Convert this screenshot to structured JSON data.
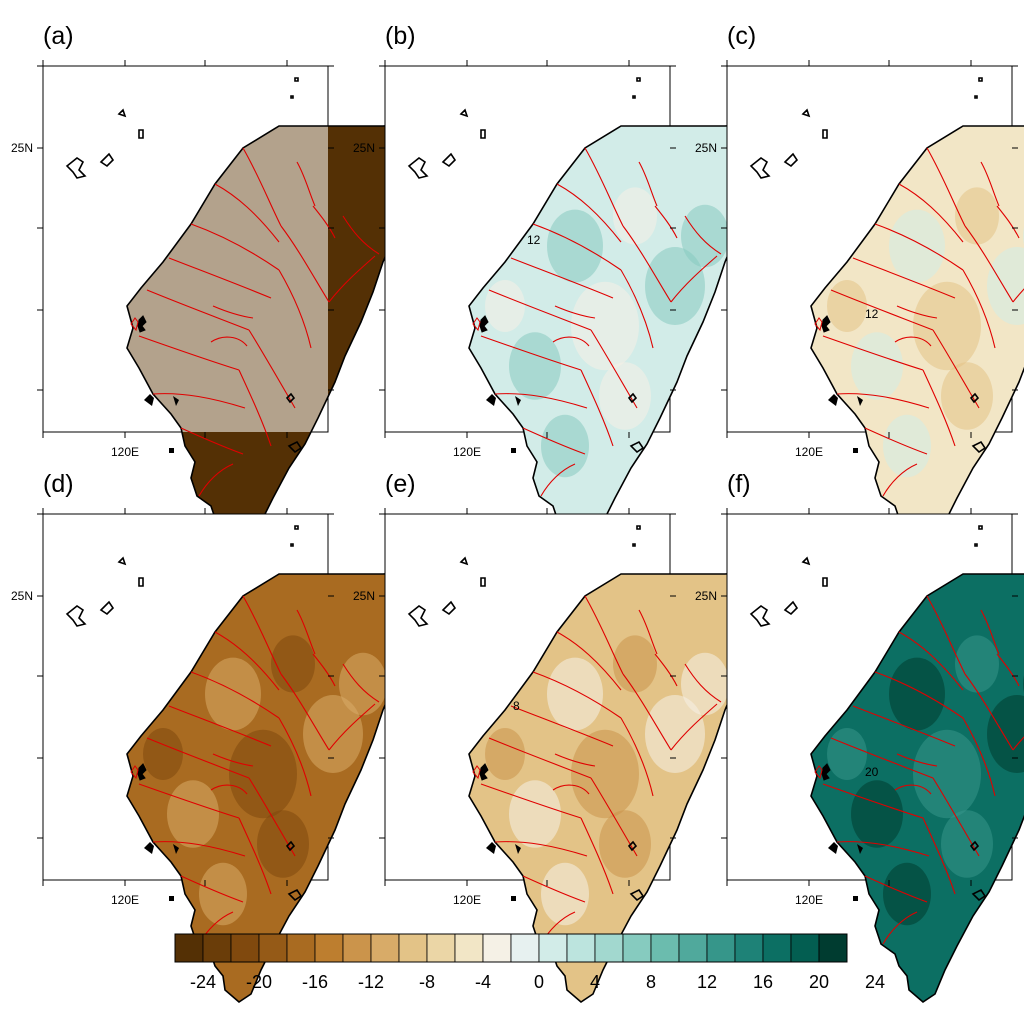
{
  "panels": [
    {
      "label": "(a)",
      "level": 0,
      "contour_label": ""
    },
    {
      "label": "(b)",
      "level": 13,
      "contour_label": "12"
    },
    {
      "label": "(c)",
      "level": 10,
      "contour_label": "12"
    },
    {
      "label": "(d)",
      "level": 4,
      "contour_label": ""
    },
    {
      "label": "(e)",
      "level": 8,
      "contour_label": "8"
    },
    {
      "label": "(f)",
      "level": 21,
      "contour_label": "20"
    }
  ],
  "axes": {
    "lat_tick_label": "25N",
    "lon_tick_label": "120E"
  },
  "colorbar": {
    "labels": [
      "-24",
      "-20",
      "-16",
      "-12",
      "-8",
      "-4",
      "0",
      "4",
      "8",
      "12",
      "16",
      "20",
      "24"
    ],
    "colors": [
      "#543005",
      "#6a3d09",
      "#80490e",
      "#955a17",
      "#a96b21",
      "#bd7e2f",
      "#cb944b",
      "#d8ab68",
      "#e3c387",
      "#ebd6a6",
      "#f2e6c6",
      "#f5f1e6",
      "#e7f1f0",
      "#d2ece8",
      "#bce4de",
      "#a2d8cf",
      "#86cbbf",
      "#6bbcae",
      "#50a99c",
      "#36968a",
      "#1e8277",
      "#0c6f63",
      "#035e51",
      "#003c30"
    ]
  },
  "colors": {
    "coast": "#000000",
    "county_borders": "#e00000"
  }
}
